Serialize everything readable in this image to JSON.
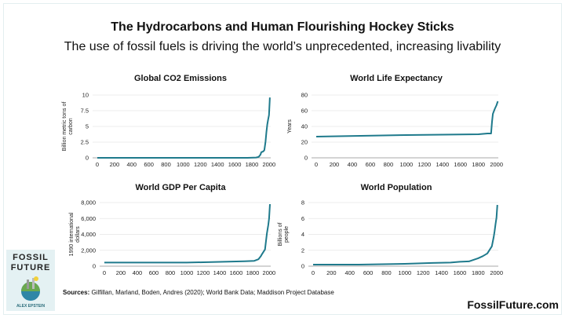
{
  "title": "The Hydrocarbons and Human Flourishing Hockey Sticks",
  "subtitle": "The use of fossil fuels is driving the world’s unprecedented, increasing livability",
  "line_color": "#1f7a8c",
  "chart_data": [
    {
      "type": "line",
      "title": "Global CO2 Emissions",
      "ylabel": "Billion metric tons of carbon",
      "xlim": [
        0,
        2020
      ],
      "ylim": [
        0,
        10
      ],
      "xticks": [
        "0",
        "200",
        "400",
        "600",
        "800",
        "1000",
        "1200",
        "1400",
        "1600",
        "1800",
        "2000"
      ],
      "yticks": [
        "0",
        "2.5",
        "5",
        "7.5",
        "10"
      ],
      "x": [
        0,
        1750,
        1850,
        1880,
        1900,
        1910,
        1930,
        1945,
        1950,
        1960,
        1970,
        1980,
        1990,
        2000,
        2010
      ],
      "y": [
        0,
        0,
        0.05,
        0.15,
        0.5,
        0.9,
        1.0,
        1.2,
        1.6,
        2.6,
        4.1,
        5.3,
        6.1,
        6.8,
        9.6
      ]
    },
    {
      "type": "line",
      "title": "World Life Expectancy",
      "ylabel": "Years",
      "xlim": [
        0,
        2020
      ],
      "ylim": [
        0,
        80
      ],
      "xticks": [
        "0",
        "200",
        "400",
        "600",
        "800",
        "1000",
        "1200",
        "1400",
        "1600",
        "1800",
        "2000"
      ],
      "yticks": [
        "0",
        "20",
        "40",
        "60",
        "80"
      ],
      "x": [
        0,
        1000,
        1800,
        1900,
        1940,
        1950,
        1960,
        1980,
        2000,
        2015
      ],
      "y": [
        27,
        29,
        30,
        31,
        31,
        46,
        56,
        62,
        67,
        72
      ]
    },
    {
      "type": "line",
      "title": "World GDP Per Capita",
      "ylabel": "1990 international dollars",
      "xlim": [
        0,
        2020
      ],
      "ylim": [
        0,
        8000
      ],
      "xticks": [
        "0",
        "200",
        "400",
        "600",
        "800",
        "1000",
        "1200",
        "1400",
        "1600",
        "1800",
        "2000"
      ],
      "yticks": [
        "0",
        "2,000",
        "4,000",
        "6,000",
        "8,000"
      ],
      "x": [
        0,
        1000,
        1500,
        1700,
        1820,
        1870,
        1900,
        1913,
        1950,
        1973,
        1990,
        2000,
        2010
      ],
      "y": [
        450,
        450,
        560,
        620,
        670,
        870,
        1250,
        1500,
        2100,
        4100,
        5200,
        6000,
        7800
      ]
    },
    {
      "type": "line",
      "title": "World Population",
      "ylabel": "Billions of people",
      "xlim": [
        0,
        2020
      ],
      "ylim": [
        0,
        8
      ],
      "xticks": [
        "0",
        "200",
        "400",
        "600",
        "800",
        "1000",
        "1200",
        "1400",
        "1600",
        "1800",
        "2000"
      ],
      "yticks": [
        "0",
        "2",
        "4",
        "6",
        "8"
      ],
      "x": [
        0,
        500,
        1000,
        1300,
        1500,
        1600,
        1700,
        1800,
        1850,
        1900,
        1950,
        1970,
        1980,
        1990,
        2000,
        2010
      ],
      "y": [
        0.2,
        0.2,
        0.3,
        0.4,
        0.45,
        0.55,
        0.6,
        1.0,
        1.25,
        1.6,
        2.5,
        3.7,
        4.4,
        5.3,
        6.1,
        7.7
      ]
    }
  ],
  "cover": {
    "line1": "FOSSIL",
    "line2": "FUTURE",
    "author": "ALEX EPSTEIN"
  },
  "sources_label": "Sources:",
  "sources_text": " Gilfillan, Marland, Boden, Andres (2020); World Bank Data; Maddison Project Database",
  "site": "FossilFuture.com"
}
